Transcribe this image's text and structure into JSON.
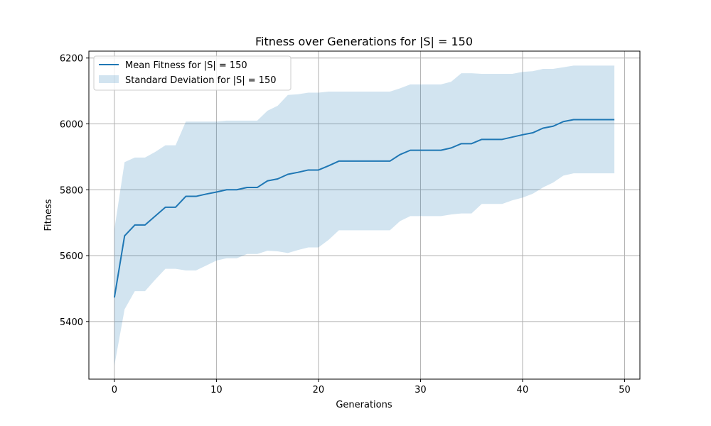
{
  "chart_data": {
    "type": "line",
    "title": "Fitness over Generations for |S| = 150",
    "xlabel": "Generations",
    "ylabel": "Fitness",
    "xlim": [
      -2.5,
      51.5
    ],
    "ylim": [
      5225,
      6221
    ],
    "xticks": [
      0,
      10,
      20,
      30,
      40,
      50
    ],
    "yticks": [
      5400,
      5600,
      5800,
      6000,
      6200
    ],
    "grid": true,
    "legend_position": "top-left",
    "colors": {
      "line": "#1f77b4",
      "band": "#1f77b4"
    },
    "x": [
      0,
      1,
      2,
      3,
      4,
      5,
      6,
      7,
      8,
      9,
      10,
      11,
      12,
      13,
      14,
      15,
      16,
      17,
      18,
      19,
      20,
      21,
      22,
      23,
      24,
      25,
      26,
      27,
      28,
      29,
      30,
      31,
      32,
      33,
      34,
      35,
      36,
      37,
      38,
      39,
      40,
      41,
      42,
      43,
      44,
      45,
      46,
      47,
      48,
      49
    ],
    "series": [
      {
        "name": "Mean Fitness for |S| = 150",
        "kind": "line",
        "values": [
          5473,
          5660,
          5693,
          5693,
          5720,
          5747,
          5747,
          5780,
          5780,
          5787,
          5793,
          5800,
          5800,
          5807,
          5807,
          5827,
          5833,
          5847,
          5853,
          5860,
          5860,
          5873,
          5887,
          5887,
          5887,
          5887,
          5887,
          5887,
          5907,
          5920,
          5920,
          5920,
          5920,
          5927,
          5940,
          5940,
          5953,
          5953,
          5953,
          5960,
          5967,
          5973,
          5987,
          5993,
          6007,
          6013,
          6013,
          6013,
          6013,
          6013
        ]
      },
      {
        "name": "Standard Deviation for |S| = 150",
        "kind": "band",
        "upper": [
          5680,
          5884,
          5898,
          5898,
          5915,
          5935,
          5935,
          6007,
          6007,
          6007,
          6007,
          6010,
          6010,
          6010,
          6010,
          6040,
          6055,
          6088,
          6090,
          6095,
          6095,
          6098,
          6098,
          6098,
          6098,
          6098,
          6098,
          6098,
          6108,
          6120,
          6120,
          6120,
          6120,
          6128,
          6154,
          6154,
          6152,
          6152,
          6152,
          6152,
          6158,
          6160,
          6167,
          6167,
          6172,
          6177,
          6177,
          6177,
          6177,
          6177
        ],
        "lower": [
          5266,
          5437,
          5492,
          5492,
          5527,
          5560,
          5560,
          5555,
          5555,
          5570,
          5585,
          5592,
          5592,
          5605,
          5605,
          5615,
          5613,
          5608,
          5617,
          5625,
          5625,
          5648,
          5677,
          5677,
          5677,
          5677,
          5677,
          5677,
          5705,
          5720,
          5720,
          5720,
          5720,
          5725,
          5728,
          5728,
          5757,
          5757,
          5757,
          5768,
          5776,
          5788,
          5807,
          5822,
          5843,
          5850,
          5850,
          5850,
          5850,
          5850
        ]
      }
    ]
  }
}
